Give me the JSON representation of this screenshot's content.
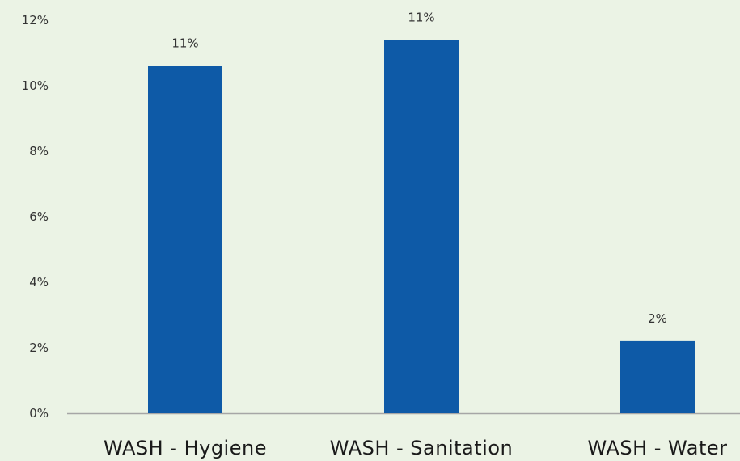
{
  "chart_data": {
    "type": "bar",
    "categories": [
      "WASH - Hygiene",
      "WASH - Sanitation",
      "WASH - Water"
    ],
    "values": [
      10.6,
      11.4,
      2.2
    ],
    "data_labels": [
      "11%",
      "11%",
      "2%"
    ],
    "ylim": [
      0,
      12
    ],
    "yticks": [
      0,
      2,
      4,
      6,
      8,
      10,
      12
    ],
    "ytick_labels": [
      "0%",
      "2%",
      "4%",
      "6%",
      "8%",
      "10%",
      "12%"
    ],
    "title": "",
    "xlabel": "",
    "ylabel": "",
    "grid": false,
    "legend": "none",
    "colors": {
      "bar": "#0e5aa7",
      "background": "#ebf3e5",
      "axis": "#a6a6a6"
    }
  }
}
